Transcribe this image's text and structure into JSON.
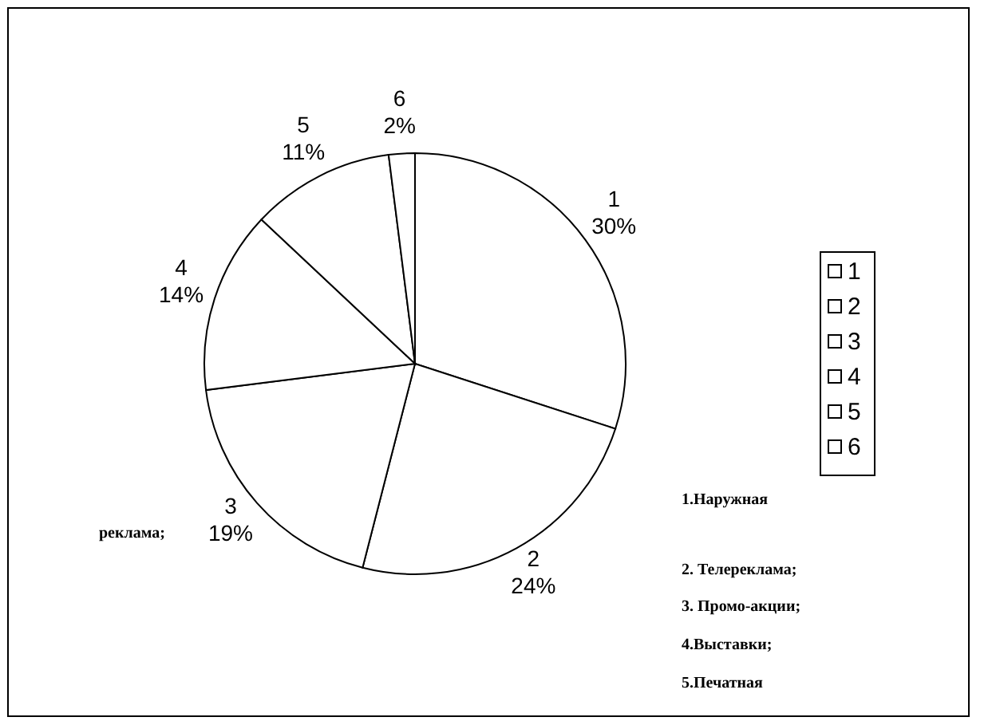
{
  "chart_data": {
    "type": "pie",
    "categories": [
      "1",
      "2",
      "3",
      "4",
      "5",
      "6"
    ],
    "values": [
      30,
      24,
      19,
      14,
      11,
      2
    ],
    "value_labels": [
      "30%",
      "24%",
      "19%",
      "14%",
      "11%",
      "2%"
    ],
    "colors": [
      "#ffffff",
      "#ffffff",
      "#ffffff",
      "#ffffff",
      "#ffffff",
      "#ffffff"
    ],
    "legend": "right",
    "annotations": [
      "1.Наружная",
      "реклама;",
      "2. Телереклама;",
      "3. Промо-акции;",
      "4.Выставки;",
      "5.Печатная"
    ]
  }
}
